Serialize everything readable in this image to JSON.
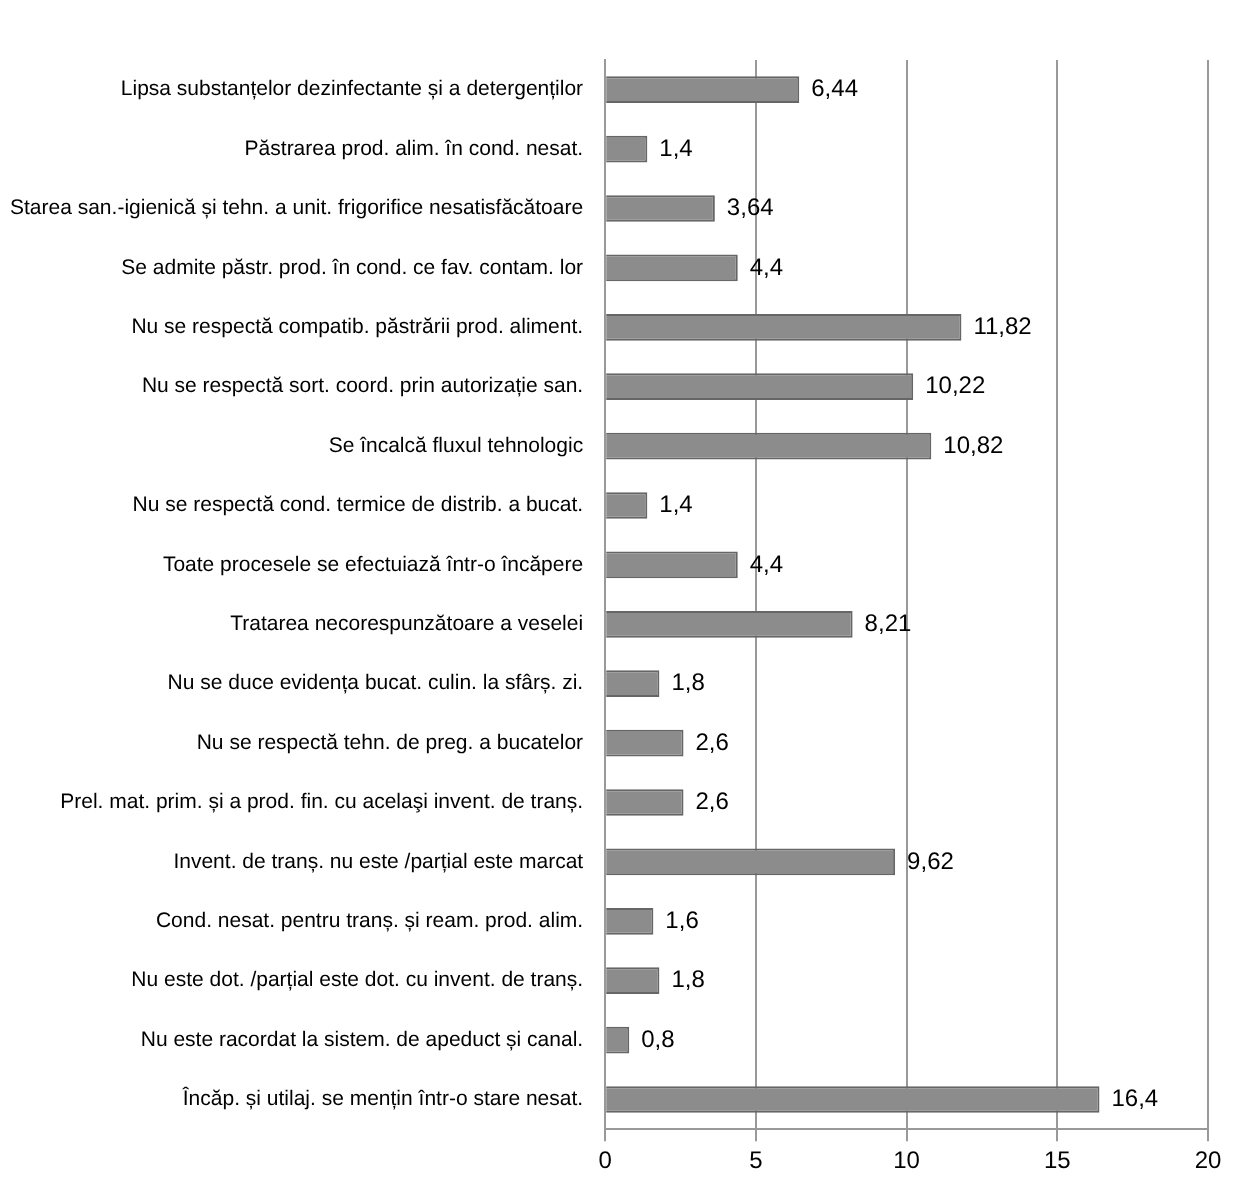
{
  "chart_data": {
    "type": "bar",
    "orientation": "horizontal",
    "categories": [
      "Lipsa substanțelor dezinfectante și a detergenților",
      "Păstrarea prod. alim. în cond. nesat.",
      "Starea san.-igienică și tehn. a unit. frigorifice nesatisfăcătoare",
      "Se admite păstr. prod. în cond. ce fav. contam. lor",
      "Nu se respectă compatib. păstrării prod. aliment.",
      "Nu se respectă sort. coord. prin autorizație san.",
      "Se încalcă fluxul tehnologic",
      "Nu se respectă cond. termice de distrib. a bucat.",
      "Toate procesele se efectuiază într-o încăpere",
      "Tratarea necorespunzătoare a veselei",
      "Nu se duce evidența bucat. culin. la sfârș. zi.",
      "Nu se respectă tehn. de preg. a bucatelor",
      "Prel. mat. prim. și a prod. fin. cu acelaşi invent. de tranș.",
      "Invent. de tranș. nu este /parțial este marcat",
      "Cond. nesat. pentru tranș. și ream. prod. alim.",
      "Nu este dot. /parțial este dot. cu invent. de tranș.",
      "Nu este racordat la sistem. de apeduct și canal.",
      "Încăp. și utilaj. se mențin într-o stare nesat."
    ],
    "values": [
      6.44,
      1.4,
      3.64,
      4.4,
      11.82,
      10.22,
      10.82,
      1.4,
      4.4,
      8.21,
      1.8,
      2.6,
      2.6,
      9.62,
      1.6,
      1.8,
      0.8,
      16.4
    ],
    "value_labels": [
      "6,44",
      "1,4",
      "3,64",
      "4,4",
      "11,82",
      "10,22",
      "10,82",
      "1,4",
      "4,4",
      "8,21",
      "1,8",
      "2,6",
      "2,6",
      "9,62",
      "1,6",
      "1,8",
      "0,8",
      "16,4"
    ],
    "color": "#8c8c8c",
    "xlim": [
      0,
      20
    ],
    "xticks": [
      0,
      5,
      10,
      15,
      20
    ],
    "grid": "x"
  }
}
